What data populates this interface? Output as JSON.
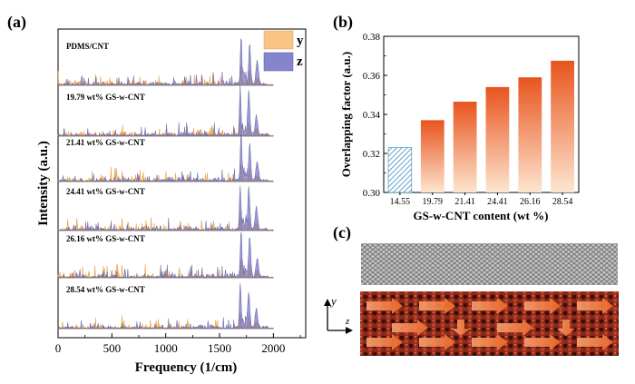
{
  "panels": {
    "a": "(a)",
    "b": "(b)",
    "c": "(c)"
  },
  "colors": {
    "y_fill": "#f6a838",
    "y_legend": "#f9c584",
    "z_fill": "#7070c0",
    "z_legend": "#8585cc",
    "bar_top": "#e8541e",
    "bar_bottom": "#fde5cf",
    "hatch": "#3a8fc0"
  },
  "chart_data": [
    {
      "id": "a",
      "type": "area",
      "title": "",
      "xlabel": "Frequency (1/cm)",
      "ylabel": "Intensity (a.u.)",
      "xlim": [
        0,
        2300
      ],
      "xticks": [
        0,
        500,
        1000,
        1500,
        2000
      ],
      "legend": [
        {
          "name": "y"
        },
        {
          "name": "z"
        }
      ],
      "legend_position": "top-right",
      "stack_labels": [
        "PDMS/CNT",
        "19.79 wt% GS-w-CNT",
        "21.41 wt% GS-w-CNT",
        "24.41 wt% GS-w-CNT",
        "26.16 wt% GS-w-CNT",
        "28.54 wt% GS-w-CNT"
      ],
      "main_peak_positions": [
        1700,
        1780,
        1850
      ]
    },
    {
      "id": "b",
      "type": "bar",
      "title": "",
      "xlabel": "GS-w-CNT content (wt %)",
      "ylabel": "Overlapping factor (a.u.)",
      "categories": [
        "14.55",
        "19.79",
        "21.41",
        "24.41",
        "26.16",
        "28.54"
      ],
      "values": [
        0.323,
        0.337,
        0.3465,
        0.354,
        0.359,
        0.3675
      ],
      "ylim": [
        0.3,
        0.38
      ],
      "yticks": [
        "0.30",
        "0.32",
        "0.34",
        "0.36",
        "0.38"
      ],
      "first_bar_style": "hatched"
    }
  ],
  "axes_c": {
    "y": "y",
    "z": "z"
  }
}
